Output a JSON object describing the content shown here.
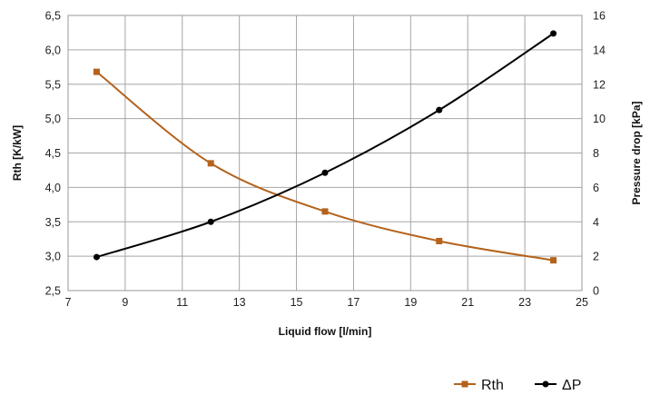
{
  "chart_data": {
    "type": "line",
    "xlabel": "Liquid flow [l/min]",
    "ylabel": "Rth [K/kW]",
    "y2label": "Pressure drop [kPa]",
    "xlim": [
      7,
      25
    ],
    "xticks": [
      7,
      9,
      11,
      13,
      15,
      17,
      19,
      21,
      23,
      25
    ],
    "ylim": [
      2.5,
      6.5
    ],
    "yticks": [
      "2,5",
      "3,0",
      "3,5",
      "4,0",
      "4,5",
      "5,0",
      "5,5",
      "6,0",
      "6,5"
    ],
    "y2lim": [
      0,
      16
    ],
    "y2ticks": [
      0,
      2,
      4,
      6,
      8,
      10,
      12,
      14,
      16
    ],
    "grid": true,
    "legend_position": "bottom-right",
    "series": [
      {
        "name": "Rth",
        "axis": "left",
        "color": "#B4621C",
        "marker": "square",
        "x": [
          8,
          12,
          16,
          20,
          24
        ],
        "values": [
          5.68,
          4.35,
          3.65,
          3.22,
          2.94
        ]
      },
      {
        "name": "ΔP",
        "axis": "right",
        "color": "#000000",
        "marker": "circle",
        "x": [
          8,
          12,
          16,
          20,
          24
        ],
        "values": [
          1.95,
          4.0,
          6.85,
          10.5,
          14.95
        ]
      }
    ]
  }
}
